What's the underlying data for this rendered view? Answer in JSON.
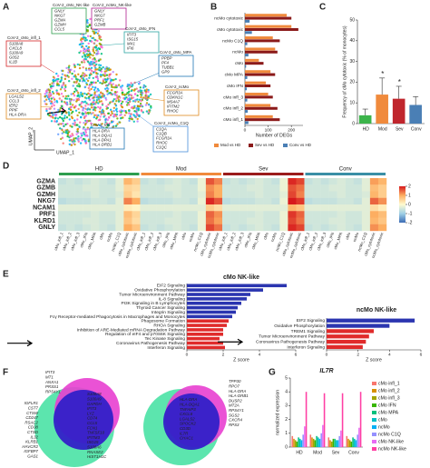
{
  "figure": {
    "panel_labels": [
      "A",
      "B",
      "C",
      "D",
      "E",
      "F",
      "G"
    ],
    "umap": {
      "xlabel": "UMAP_1",
      "ylabel": "UMAP_2",
      "palette": [
        "#f8766d",
        "#e58700",
        "#c99800",
        "#a3a500",
        "#6bb100",
        "#00ba38",
        "#00bf7d",
        "#00c0af",
        "#00bcd8",
        "#00b0f6",
        "#619cff",
        "#b983ff",
        "#e76bf3",
        "#fd61d1",
        "#ff67a4"
      ],
      "clusters": [
        {
          "name": "CoV-2_cMo_NK-like",
          "color": "#2e9e4f",
          "genes": [
            "GNLY",
            "NKG7",
            "GZMA",
            "GZMH",
            "CCL5"
          ]
        },
        {
          "name": "CoV-2_ncMo_NK-like",
          "color": "#b01e8f",
          "genes": [
            "GNLY",
            "NKG7",
            "PRF1",
            "GZMB"
          ]
        },
        {
          "name": "CoV-2_cMo_infl_1",
          "color": "#d62728",
          "genes": [
            "S100A8",
            "CXCL8",
            "S100A9",
            "G0S2",
            "IL1B"
          ]
        },
        {
          "name": "CoV-2_cMo_infl_2",
          "color": "#e08a1e",
          "genes": [
            "LGALS2",
            "CCL3",
            "IER2",
            "PPIF",
            "HLA-DRA"
          ]
        },
        {
          "name": "CoV-2_cMo_IFN",
          "color": "#2ca6a4",
          "genes": [
            "IFIT3",
            "ISG15",
            "MX1",
            "IFI6"
          ]
        },
        {
          "name": "CoV-2_cMo_MPA",
          "color": "#1f77b4",
          "genes": [
            "PPBP",
            "PF4",
            "TUBB1",
            "GP9"
          ]
        },
        {
          "name": "CoV-2_ncMo",
          "color": "#e08a1e",
          "genes": [
            "FCGR3A",
            "CDKN1C",
            "MS4A7",
            "IFITM2",
            "RHOC"
          ]
        },
        {
          "name": "CoV-2_ncMo_C1Q",
          "color": "#4a90d9",
          "genes": [
            "C1QA",
            "C1QB",
            "FCGR3A",
            "RHOC",
            "C1QC"
          ]
        },
        {
          "name": "CoV-2_Mo",
          "color": "#1f77b4",
          "genes": [
            "HLA-DRA",
            "HLA-DQA1",
            "HLA-DPA1",
            "HLA-DRB1"
          ]
        }
      ]
    },
    "venns": [
      {
        "top": [
          "IFIT3",
          "MT1",
          "ANXA1",
          "PRSS1",
          "RPS4Y1"
        ],
        "left": [
          "IGFLR1",
          "CST7",
          "CTSW",
          "CD247",
          "RSAC2",
          "CD38",
          "CTSD",
          "IL32",
          "KLRB1",
          "HAVCR2",
          "IGFBP7",
          "GAS1"
        ],
        "center": [
          "S100A8",
          "S100A9",
          "GAPDH",
          "IFIT3",
          "LYZ",
          "CD74",
          "CCL5",
          "FCN1",
          "TNFSF10",
          "IFITM3",
          "ISG15",
          "S100A6",
          "RNASE2",
          "HIST1H1C"
        ]
      },
      {
        "center": [
          "HLA-DRA",
          "HLA-DQA1",
          "TNFAIP3",
          "CXCL8",
          "LGALS2",
          "SPOCK2",
          "CD3D",
          "IL7R",
          "CHAC1"
        ],
        "right": [
          "TPP30",
          "RPO7",
          "HLA-DRA",
          "HLA-DRB1",
          "DUSP2",
          "MT2A",
          "RPS4Y1",
          "SGS2",
          "CXCR4",
          "RPS3"
        ]
      }
    ]
  },
  "chart_data": [
    {
      "type": "bar",
      "orientation": "horizontal",
      "categories": [
        "ncMo cytotoxic",
        "cMo cytotoxic",
        "ncMo C1Q",
        "ncMo",
        "cMo",
        "cMo MPA",
        "cMo IFN",
        "cMo infl_3",
        "cMo infl_2",
        "cMo infl_1"
      ],
      "series": [
        {
          "name": "Mod vs HD",
          "color": "#f08a3c",
          "values": [
            180,
            200,
            120,
            130,
            60,
            110,
            90,
            100,
            110,
            120
          ]
        },
        {
          "name": "Sev vs HD",
          "color": "#8b1a1a",
          "values": [
            200,
            230,
            150,
            140,
            80,
            130,
            110,
            120,
            140,
            150
          ]
        },
        {
          "name": "Conv vs HD",
          "color": "#4a7fb5",
          "values": [
            20,
            30,
            10,
            15,
            5,
            10,
            8,
            10,
            12,
            15
          ]
        }
      ],
      "xlabel": "Number of DEGs",
      "xlim": [
        0,
        250
      ],
      "xticks": [
        0,
        100,
        200
      ],
      "legend": "bottom"
    },
    {
      "type": "bar",
      "categories": [
        "HD",
        "Mod",
        "Sev",
        "Conv"
      ],
      "values": [
        4,
        14,
        12,
        9
      ],
      "errors": [
        3,
        8,
        6,
        4
      ],
      "colors": [
        "#3cb44b",
        "#f08a3c",
        "#c0262d",
        "#4a7fb5"
      ],
      "ylabel": "Frequency of cMo cytotoxic (% of monocytes)",
      "ylim": [
        0,
        50
      ],
      "yticks": [
        0,
        10,
        20,
        30,
        40,
        50
      ],
      "significance": [
        {
          "category": "Mod",
          "label": "*"
        },
        {
          "category": "Sev",
          "label": "*"
        }
      ]
    },
    {
      "type": "heatmap",
      "rows": [
        "GZMA",
        "GZMB",
        "GZMH",
        "NKG7",
        "NCAM1",
        "PRF1",
        "KLRD1",
        "GNLY"
      ],
      "columns": [
        "cMo_infl_1",
        "cMo_infl_2",
        "cMo_infl_3",
        "cMo_IFN",
        "cMo_MPA",
        "cMo",
        "ncMo",
        "ncMo_C1Q",
        "cMo_cytotoxic",
        "ncMo_cytotoxic"
      ],
      "colorscale": [
        "#3b6bb5",
        "#9fd0e6",
        "#fffbd0",
        "#fdae61",
        "#d7191c"
      ],
      "zlim": [
        -2,
        2
      ],
      "zticks": [
        -2,
        -1,
        0,
        1,
        2
      ],
      "groups": [
        {
          "name": "HD",
          "color": "#2e9e4f",
          "values": [
            [
              -0.6,
              -0.5,
              -0.6,
              -0.5,
              -0.4,
              -0.5,
              -0.6,
              -0.3,
              0.9,
              0.6
            ],
            [
              -0.5,
              -0.5,
              -0.5,
              -0.4,
              -0.4,
              -0.5,
              -0.5,
              -0.3,
              0.5,
              0.4
            ],
            [
              -0.5,
              -0.5,
              -0.5,
              -0.5,
              -0.4,
              -0.5,
              -0.5,
              -0.4,
              0.6,
              0.3
            ],
            [
              -0.7,
              -0.6,
              -0.6,
              -0.6,
              -0.5,
              -0.5,
              -0.6,
              -0.3,
              1.3,
              1.0
            ],
            [
              -0.3,
              -0.3,
              -0.3,
              -0.3,
              -0.3,
              -0.3,
              -0.3,
              -0.3,
              0.2,
              0.1
            ],
            [
              -0.5,
              -0.5,
              -0.5,
              -0.5,
              -0.4,
              -0.5,
              -0.5,
              -0.3,
              0.8,
              0.5
            ],
            [
              -0.5,
              -0.5,
              -0.5,
              -0.4,
              -0.4,
              -0.5,
              -0.5,
              -0.3,
              0.7,
              0.4
            ],
            [
              -0.6,
              -0.5,
              -0.6,
              -0.5,
              -0.4,
              -0.5,
              -0.6,
              -0.3,
              1.0,
              0.7
            ]
          ]
        },
        {
          "name": "Mod",
          "color": "#f08a3c",
          "values": [
            [
              -0.6,
              -0.5,
              -0.6,
              -0.5,
              -0.4,
              -0.5,
              -0.6,
              -0.2,
              1.6,
              1.3
            ],
            [
              -0.5,
              -0.5,
              -0.5,
              -0.4,
              -0.4,
              -0.5,
              -0.5,
              -0.2,
              1.2,
              1.0
            ],
            [
              -0.5,
              -0.5,
              -0.5,
              -0.5,
              -0.4,
              -0.5,
              -0.5,
              -0.3,
              1.3,
              1.0
            ],
            [
              -0.7,
              -0.6,
              -0.6,
              -0.6,
              -0.5,
              -0.5,
              -0.6,
              -0.2,
              1.9,
              1.6
            ],
            [
              -0.3,
              -0.3,
              -0.3,
              -0.3,
              -0.3,
              -0.3,
              -0.3,
              -0.3,
              0.6,
              0.4
            ],
            [
              -0.5,
              -0.5,
              -0.5,
              -0.5,
              -0.4,
              -0.5,
              -0.5,
              -0.2,
              1.5,
              1.2
            ],
            [
              -0.5,
              -0.5,
              -0.5,
              -0.4,
              -0.4,
              -0.5,
              -0.5,
              -0.2,
              1.4,
              1.1
            ],
            [
              -0.6,
              -0.5,
              -0.6,
              -0.5,
              -0.4,
              -0.5,
              -0.6,
              -0.2,
              1.7,
              1.4
            ]
          ]
        },
        {
          "name": "Sev",
          "color": "#9b1c1c",
          "values": [
            [
              -0.6,
              -0.5,
              -0.6,
              -0.5,
              -0.4,
              -0.5,
              -0.6,
              -0.2,
              1.9,
              1.7
            ],
            [
              -0.5,
              -0.5,
              -0.5,
              -0.4,
              -0.4,
              -0.5,
              -0.5,
              -0.2,
              1.6,
              1.4
            ],
            [
              -0.5,
              -0.5,
              -0.5,
              -0.5,
              -0.4,
              -0.5,
              -0.5,
              -0.3,
              1.7,
              1.3
            ],
            [
              -0.7,
              -0.6,
              -0.6,
              -0.6,
              -0.5,
              -0.5,
              -0.6,
              -0.2,
              2.0,
              1.8
            ],
            [
              -0.3,
              -0.3,
              -0.3,
              -0.3,
              -0.3,
              -0.3,
              -0.3,
              -0.3,
              0.9,
              0.7
            ],
            [
              -0.5,
              -0.5,
              -0.5,
              -0.5,
              -0.4,
              -0.5,
              -0.5,
              -0.2,
              1.8,
              1.5
            ],
            [
              -0.5,
              -0.5,
              -0.5,
              -0.4,
              -0.4,
              -0.5,
              -0.5,
              -0.2,
              1.7,
              1.4
            ],
            [
              -0.6,
              -0.5,
              -0.6,
              -0.5,
              -0.4,
              -0.5,
              -0.6,
              -0.2,
              1.9,
              1.7
            ]
          ]
        },
        {
          "name": "Conv",
          "color": "#3a8fa6",
          "values": [
            [
              -0.6,
              -0.5,
              -0.6,
              -0.5,
              -0.4,
              -0.5,
              -0.6,
              -0.3,
              1.1,
              0.9
            ],
            [
              -0.5,
              -0.5,
              -0.5,
              -0.4,
              -0.4,
              -0.5,
              -0.5,
              -0.3,
              0.8,
              0.6
            ],
            [
              -0.5,
              -0.5,
              -0.5,
              -0.5,
              -0.4,
              -0.5,
              -0.5,
              -0.4,
              0.9,
              0.6
            ],
            [
              -0.7,
              -0.6,
              -0.6,
              -0.6,
              -0.5,
              -0.5,
              -0.6,
              -0.3,
              1.5,
              1.2
            ],
            [
              -0.3,
              -0.3,
              -0.3,
              -0.3,
              -0.3,
              -0.3,
              -0.3,
              -0.3,
              0.4,
              0.2
            ],
            [
              -0.5,
              -0.5,
              -0.5,
              -0.5,
              -0.4,
              -0.5,
              -0.5,
              -0.3,
              1.0,
              0.8
            ],
            [
              -0.5,
              -0.5,
              -0.5,
              -0.4,
              -0.4,
              -0.5,
              -0.5,
              -0.3,
              0.9,
              0.7
            ],
            [
              -0.6,
              -0.5,
              -0.6,
              -0.5,
              -0.4,
              -0.5,
              -0.6,
              -0.3,
              1.2,
              1.0
            ]
          ]
        }
      ]
    },
    {
      "type": "bar",
      "orientation": "horizontal",
      "title": "cMo NK-like",
      "categories": [
        "EIF2 Signaling",
        "Oxidative Phosphorylation",
        "Tumor Microenvironment Pathway",
        "IL-8 Signaling",
        "PI3K Signaling in B Lymphocytes",
        "Thyroid Cancer Signaling",
        "Integrin Signaling",
        "Fcγ Receptor-mediated Phagocytosis in Macrophages and Monocytes",
        "Phagosome Formation",
        "RHOA Signaling",
        "Inhibition of ARE-Mediated mRNA Degradation Pathway",
        "Regulation of eIF4 and p70S6K Signaling",
        "Tec Kinase Signaling",
        "Coronavirus Pathogenesis Pathway",
        "Interferon Signaling"
      ],
      "values": [
        5.5,
        4.2,
        3.5,
        3.3,
        3.0,
        2.8,
        2.7,
        2.5,
        2.3,
        2.2,
        2.0,
        2.0,
        1.8,
        2.0,
        2.1
      ],
      "colors": [
        "#2b35b0",
        "#2b35b0",
        "#2b35b0",
        "#2b35b0",
        "#2b35b0",
        "#2b35b0",
        "#2b35b0",
        "#2b35b0",
        "#e02b2b",
        "#e02b2b",
        "#e02b2b",
        "#e02b2b",
        "#e02b2b",
        "#e02b2b",
        "#e02b2b"
      ],
      "highlight": "Coronavirus Pathogenesis Pathway",
      "xlabel": "Z score",
      "xlim": [
        0,
        6
      ],
      "xticks": [
        0,
        2,
        4,
        6
      ]
    },
    {
      "type": "bar",
      "orientation": "horizontal",
      "title": "ncMo NK-like",
      "categories": [
        "EIF2 Signaling",
        "Oxidative Phosphorylation",
        "TREM1 Signaling",
        "Tumor Microenvironment Pathway",
        "Coronavirus Pathogenesis Pathway",
        "Interferon Signaling"
      ],
      "values": [
        5.6,
        4.0,
        3.0,
        2.7,
        2.5,
        2.3
      ],
      "colors": [
        "#2b35b0",
        "#2b35b0",
        "#e02b2b",
        "#e02b2b",
        "#e02b2b",
        "#e02b2b"
      ],
      "highlight": "Coronavirus Pathogenesis Pathway",
      "xlabel": "Z score",
      "xlim": [
        0,
        6
      ],
      "xticks": [
        0,
        2,
        4,
        6
      ]
    },
    {
      "type": "bar",
      "title": "IL7R",
      "ylabel": "normalized expression",
      "categories": [
        "HD",
        "Mod",
        "Sev",
        "Conv"
      ],
      "series": [
        {
          "name": "cMo infl_1",
          "color": "#f8766d",
          "values": [
            0.8,
            0.9,
            0.7,
            0.8
          ]
        },
        {
          "name": "cMo infl_2",
          "color": "#d89000",
          "values": [
            0.6,
            0.7,
            0.5,
            0.6
          ]
        },
        {
          "name": "cMo infl_3",
          "color": "#a3a500",
          "values": [
            0.5,
            0.6,
            0.4,
            0.5
          ]
        },
        {
          "name": "cMo IFN",
          "color": "#39b600",
          "values": [
            0.4,
            0.5,
            0.6,
            0.4
          ]
        },
        {
          "name": "cMo MPA",
          "color": "#00bf7d",
          "values": [
            0.7,
            0.8,
            0.6,
            0.7
          ]
        },
        {
          "name": "cMo",
          "color": "#00bfc4",
          "values": [
            0.6,
            0.7,
            0.5,
            0.6
          ]
        },
        {
          "name": "ncMo",
          "color": "#00b0f6",
          "values": [
            0.5,
            0.6,
            0.5,
            0.5
          ]
        },
        {
          "name": "ncMo C1Q",
          "color": "#9590ff",
          "values": [
            0.9,
            1.0,
            0.8,
            0.9
          ]
        },
        {
          "name": "cMo NK-like",
          "color": "#e76bf3",
          "values": [
            1.5,
            1.6,
            1.2,
            1.4
          ]
        },
        {
          "name": "ncMo NK-like",
          "color": "#ff3fa4",
          "values": [
            4.0,
            3.9,
            3.9,
            4.0
          ]
        }
      ],
      "ylim": [
        0,
        5
      ],
      "yticks": [
        0,
        1,
        2,
        3,
        4,
        5
      ],
      "legend": "right"
    }
  ]
}
